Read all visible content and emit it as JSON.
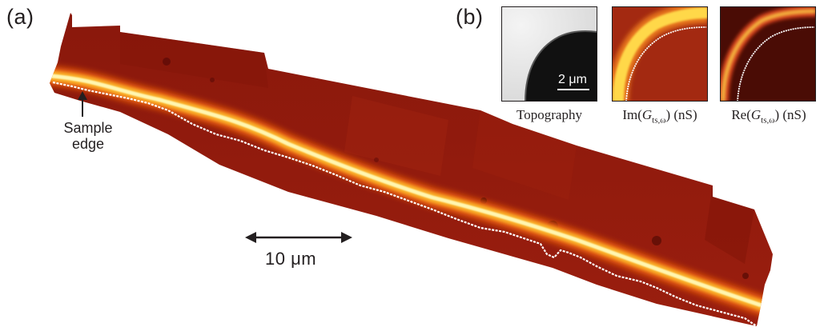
{
  "panels": {
    "a_label": "(a)",
    "b_label": "(b)"
  },
  "main_image": {
    "edge_label_line1": "Sample",
    "edge_label_line2": "edge",
    "scale_bar_label": "10 μm"
  },
  "insets": {
    "topography_caption": "Topography",
    "topography_scale_label": "2 μm",
    "im_caption_prefix": "Im(",
    "im_caption_var": "G",
    "im_caption_sub": "ts,ω",
    "im_caption_suffix": ") (nS)",
    "re_caption_prefix": "Re(",
    "re_caption_var": "G",
    "re_caption_sub": "ts,ω",
    "re_caption_suffix": ") (nS)"
  },
  "colors": {
    "dark_red": "#8e1a0e",
    "bright_edge": "#fff3a0",
    "edge_orange": "#f08c14",
    "white_line": "#ffffff",
    "text": "#231f20"
  }
}
